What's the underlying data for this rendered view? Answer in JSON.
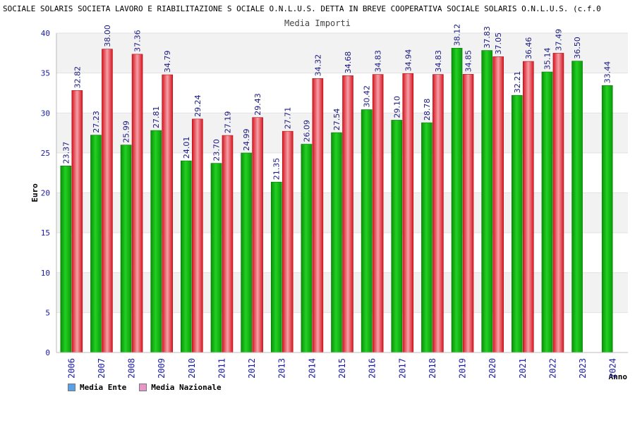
{
  "title": "SOCIALE SOLARIS SOCIETA LAVORO E RIABILITAZIONE S OCIALE O.N.L.U.S. DETTA IN BREVE COOPERATIVA SOCIALE SOLARIS O.N.L.U.S. (c.f.0",
  "subtitle": "Media Importi",
  "colors": {
    "ente": "#11b811",
    "nazionale": "#e8323c",
    "legend_ente": "#5aa0e6",
    "legend_nazionale": "#e896c8"
  },
  "chart_data": {
    "type": "bar",
    "title": "Media Importi",
    "xlabel": "Anno",
    "ylabel": "Euro",
    "ylim": [
      0,
      40
    ],
    "yticks": [
      0,
      5,
      10,
      15,
      20,
      25,
      30,
      35,
      40
    ],
    "grid": true,
    "legend": "bottom-left",
    "categories": [
      "2006",
      "2007",
      "2008",
      "2009",
      "2010",
      "2011",
      "2012",
      "2013",
      "2014",
      "2015",
      "2016",
      "2017",
      "2018",
      "2019",
      "2020",
      "2021",
      "2022",
      "2023",
      "2024"
    ],
    "series": [
      {
        "name": "Media Ente",
        "values": [
          23.37,
          27.23,
          25.99,
          27.81,
          24.01,
          23.7,
          24.99,
          21.35,
          26.09,
          27.54,
          30.42,
          29.1,
          28.78,
          38.12,
          37.83,
          32.21,
          35.14,
          36.5,
          33.44
        ],
        "labels": [
          "23.37",
          "27.23",
          "25.99",
          "27.81",
          "24.01",
          "23.70",
          "24.99",
          "21.35",
          "26.09",
          "27.54",
          "30.42",
          "29.10",
          "28.78",
          "38.12",
          "37.83",
          "32.21",
          "35.14",
          "36.50",
          "33.44"
        ]
      },
      {
        "name": "Media Nazionale",
        "values": [
          32.82,
          38.0,
          37.36,
          34.79,
          29.24,
          27.19,
          29.43,
          27.71,
          34.32,
          34.68,
          34.83,
          34.94,
          34.83,
          34.85,
          37.05,
          36.46,
          37.49,
          null,
          null
        ],
        "labels": [
          "32.82",
          "38.00",
          "37.36",
          "34.79",
          "29.24",
          "27.19",
          "29.43",
          "27.71",
          "34.32",
          "34.68",
          "34.83",
          "34.94",
          "34.83",
          "34.85",
          "37.05",
          "36.46",
          "37.49",
          null,
          null
        ]
      }
    ]
  }
}
